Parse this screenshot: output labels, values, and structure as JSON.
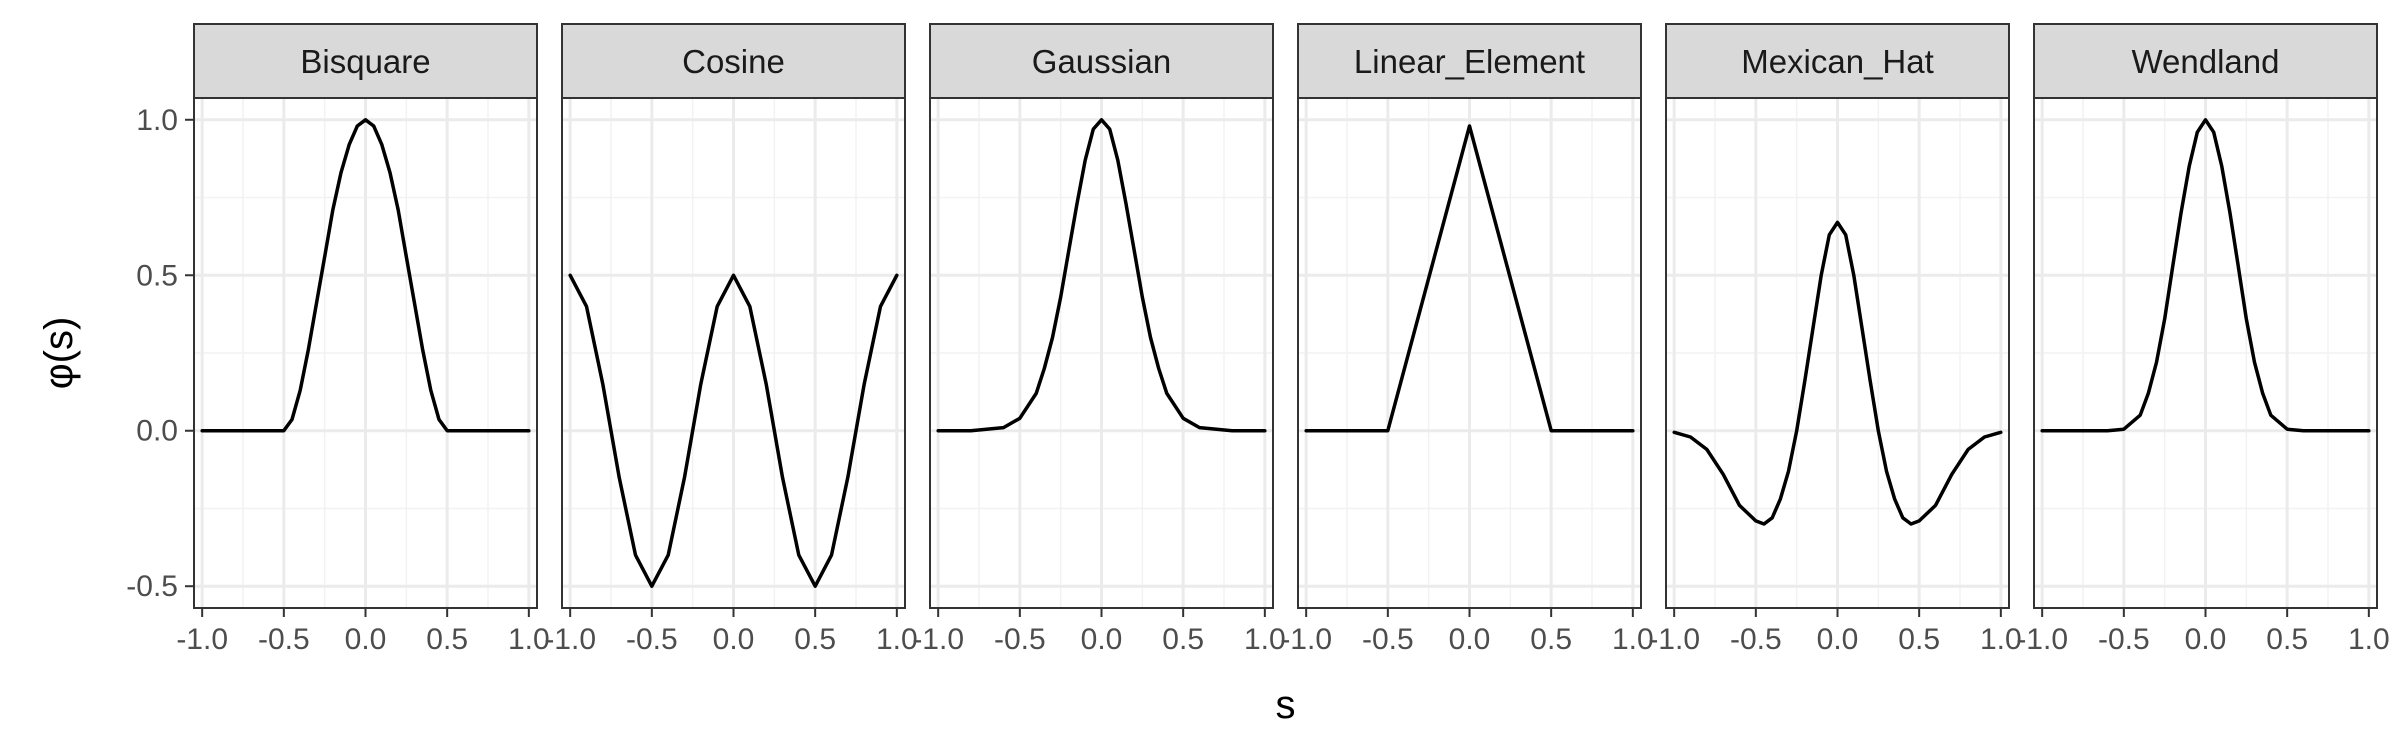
{
  "chart_data": {
    "type": "line",
    "layout": "facet-grid-1x6",
    "xlabel": "s",
    "ylabel": "φ(s)",
    "xlim": [
      -1.05,
      1.05
    ],
    "ylim": [
      -0.57,
      1.07
    ],
    "x_ticks": [
      -1.0,
      -0.5,
      0.0,
      0.5,
      1.0
    ],
    "x_tick_labels": [
      "-1.0",
      "-0.5",
      "0.0",
      "0.5",
      "1.0"
    ],
    "y_ticks": [
      1.0,
      0.5,
      0.0,
      -0.5
    ],
    "y_tick_labels": [
      "1.0",
      "0.5",
      "0.0",
      "-0.5"
    ],
    "grid": true,
    "panels": [
      {
        "title": "Bisquare",
        "x": [
          -1.0,
          -0.75,
          -0.5,
          -0.45,
          -0.4,
          -0.35,
          -0.3,
          -0.25,
          -0.2,
          -0.15,
          -0.1,
          -0.05,
          0.0,
          0.05,
          0.1,
          0.15,
          0.2,
          0.25,
          0.3,
          0.35,
          0.4,
          0.45,
          0.5,
          0.75,
          1.0
        ],
        "y": [
          0.0,
          0.0,
          0.0,
          0.036,
          0.13,
          0.26,
          0.41,
          0.56,
          0.71,
          0.83,
          0.92,
          0.98,
          1.0,
          0.98,
          0.92,
          0.83,
          0.71,
          0.56,
          0.41,
          0.26,
          0.13,
          0.036,
          0.0,
          0.0,
          0.0
        ]
      },
      {
        "title": "Cosine",
        "x": [
          -1.0,
          -0.9,
          -0.8,
          -0.7,
          -0.6,
          -0.5,
          -0.4,
          -0.3,
          -0.2,
          -0.1,
          0.0,
          0.1,
          0.2,
          0.3,
          0.4,
          0.5,
          0.6,
          0.7,
          0.8,
          0.9,
          1.0
        ],
        "y": [
          0.5,
          0.4,
          0.15,
          -0.15,
          -0.4,
          -0.5,
          -0.4,
          -0.15,
          0.15,
          0.4,
          0.5,
          0.4,
          0.15,
          -0.15,
          -0.4,
          -0.5,
          -0.4,
          -0.15,
          0.15,
          0.4,
          0.5
        ]
      },
      {
        "title": "Gaussian",
        "x": [
          -1.0,
          -0.8,
          -0.6,
          -0.5,
          -0.4,
          -0.35,
          -0.3,
          -0.25,
          -0.2,
          -0.15,
          -0.1,
          -0.05,
          0.0,
          0.05,
          0.1,
          0.15,
          0.2,
          0.25,
          0.3,
          0.35,
          0.4,
          0.5,
          0.6,
          0.8,
          1.0
        ],
        "y": [
          0.0,
          0.0,
          0.01,
          0.04,
          0.12,
          0.2,
          0.3,
          0.43,
          0.58,
          0.73,
          0.87,
          0.97,
          1.0,
          0.97,
          0.87,
          0.73,
          0.58,
          0.43,
          0.3,
          0.2,
          0.12,
          0.04,
          0.01,
          0.0,
          0.0
        ]
      },
      {
        "title": "Linear_Element",
        "x": [
          -1.0,
          -0.5,
          0.0,
          0.5,
          1.0
        ],
        "y": [
          0.0,
          0.0,
          0.98,
          0.0,
          0.0
        ]
      },
      {
        "title": "Mexican_Hat",
        "x": [
          -1.0,
          -0.9,
          -0.8,
          -0.7,
          -0.6,
          -0.5,
          -0.45,
          -0.4,
          -0.35,
          -0.3,
          -0.25,
          -0.2,
          -0.15,
          -0.1,
          -0.05,
          0.0,
          0.05,
          0.1,
          0.15,
          0.2,
          0.25,
          0.3,
          0.35,
          0.4,
          0.45,
          0.5,
          0.6,
          0.7,
          0.8,
          0.9,
          1.0
        ],
        "y": [
          -0.005,
          -0.02,
          -0.06,
          -0.14,
          -0.24,
          -0.29,
          -0.3,
          -0.28,
          -0.22,
          -0.13,
          0.0,
          0.16,
          0.33,
          0.5,
          0.63,
          0.67,
          0.63,
          0.5,
          0.33,
          0.16,
          0.0,
          -0.13,
          -0.22,
          -0.28,
          -0.3,
          -0.29,
          -0.24,
          -0.14,
          -0.06,
          -0.02,
          -0.005
        ]
      },
      {
        "title": "Wendland",
        "x": [
          -1.0,
          -0.8,
          -0.6,
          -0.5,
          -0.4,
          -0.35,
          -0.3,
          -0.25,
          -0.2,
          -0.15,
          -0.1,
          -0.05,
          0.0,
          0.05,
          0.1,
          0.15,
          0.2,
          0.25,
          0.3,
          0.35,
          0.4,
          0.5,
          0.6,
          0.8,
          1.0
        ],
        "y": [
          0.0,
          0.0,
          0.0,
          0.005,
          0.05,
          0.12,
          0.22,
          0.36,
          0.53,
          0.7,
          0.85,
          0.96,
          1.0,
          0.96,
          0.85,
          0.7,
          0.53,
          0.36,
          0.22,
          0.12,
          0.05,
          0.005,
          0.0,
          0.0,
          0.0
        ]
      }
    ]
  },
  "colors": {
    "strip_fill": "#d9d9d9",
    "panel_border": "#333333",
    "grid_major": "#ebebeb",
    "grid_minor": "#f2f2f2",
    "line": "#000000",
    "tick_text": "#4d4d4d"
  }
}
